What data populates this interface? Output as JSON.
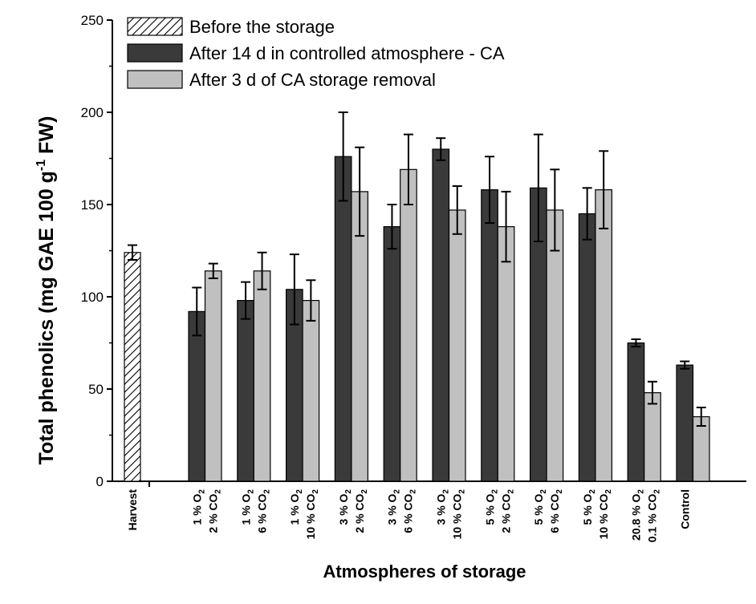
{
  "chart_data": {
    "type": "bar",
    "ylabel_main": "Total phenolics (mg GAE 100 g",
    "ylabel_sup": "-1",
    "ylabel_end": " FW)",
    "xlabel": "Atmospheres of storage",
    "ylim": [
      0,
      250
    ],
    "yticks": [
      0,
      50,
      100,
      150,
      200,
      250
    ],
    "grid": false,
    "legend_position": "top-left",
    "legend": [
      {
        "label": "Before the storage",
        "style": "hatched",
        "color": "#ffffff"
      },
      {
        "label": "After 14 d in controlled atmosphere - CA",
        "style": "solid",
        "color": "#3a3a3a"
      },
      {
        "label": "After 3 d of CA storage removal",
        "style": "solid",
        "color": "#c0c0c0"
      }
    ],
    "harvest": {
      "label": "Harvest",
      "value": 124,
      "error": 4
    },
    "categories": [
      {
        "line1": "1 % O",
        "sub1": "2",
        "line2": "2 % CO",
        "sub2": "2"
      },
      {
        "line1": "1 % O",
        "sub1": "2",
        "line2": "6 % CO",
        "sub2": "2"
      },
      {
        "line1": "1 % O",
        "sub1": "2",
        "line2": "10 % CO",
        "sub2": "2"
      },
      {
        "line1": "3 % O",
        "sub1": "2",
        "line2": "2 % CO",
        "sub2": "2"
      },
      {
        "line1": "3 % O",
        "sub1": "2",
        "line2": "6 % CO",
        "sub2": "2"
      },
      {
        "line1": "3 % O",
        "sub1": "2",
        "line2": "10 % CO",
        "sub2": "2"
      },
      {
        "line1": "5 % O",
        "sub1": "2",
        "line2": "2 % CO",
        "sub2": "2"
      },
      {
        "line1": "5 % O",
        "sub1": "2",
        "line2": "6 % CO",
        "sub2": "2"
      },
      {
        "line1": "5 % O",
        "sub1": "2",
        "line2": "10 % CO",
        "sub2": "2"
      },
      {
        "line1": "20.8 % O",
        "sub1": "2",
        "line2": "0.1 % CO",
        "sub2": "2"
      },
      {
        "line1": "Control",
        "sub1": "",
        "line2": "",
        "sub2": ""
      }
    ],
    "series": [
      {
        "name": "After 14 d in controlled atmosphere - CA",
        "color": "#3a3a3a",
        "values": [
          92,
          98,
          104,
          176,
          138,
          180,
          158,
          159,
          145,
          75,
          63
        ],
        "errors": [
          13,
          10,
          19,
          24,
          12,
          6,
          18,
          29,
          14,
          2,
          2
        ]
      },
      {
        "name": "After 3 d of CA storage removal",
        "color": "#c0c0c0",
        "values": [
          114,
          114,
          98,
          157,
          169,
          147,
          138,
          147,
          158,
          48,
          35
        ],
        "errors": [
          4,
          10,
          11,
          24,
          19,
          13,
          19,
          22,
          21,
          6,
          5
        ]
      }
    ]
  }
}
